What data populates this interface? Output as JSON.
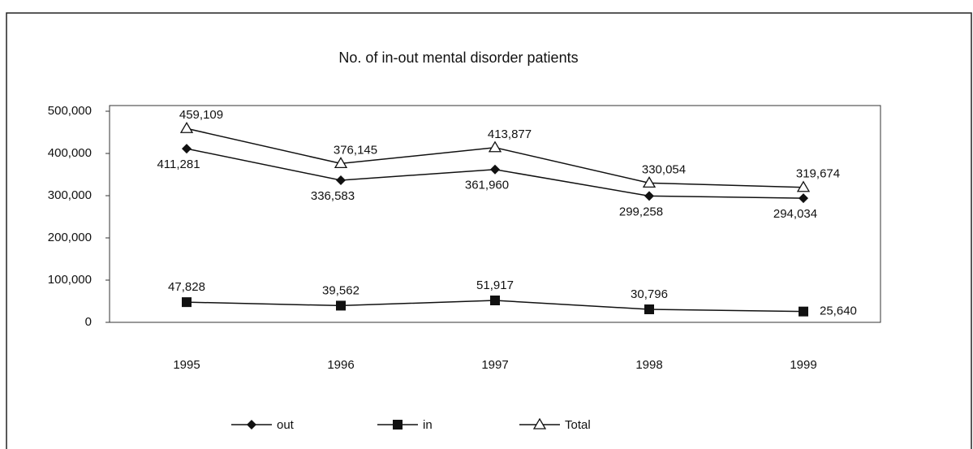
{
  "chart_data": {
    "type": "line",
    "title": "No. of in-out mental disorder patients",
    "categories": [
      "1995",
      "1996",
      "1997",
      "1998",
      "1999"
    ],
    "series": [
      {
        "name": "out",
        "color": "#111111",
        "marker": "diamond",
        "values": [
          411281,
          336583,
          361960,
          299258,
          294034
        ],
        "value_labels": [
          "411,281",
          "336,583",
          "361,960",
          "299,258",
          "294,034"
        ]
      },
      {
        "name": "in",
        "color": "#111111",
        "marker": "square",
        "values": [
          47828,
          39562,
          51917,
          30796,
          25640
        ],
        "value_labels": [
          "47,828",
          "39,562",
          "51,917",
          "30,796",
          "25,640"
        ]
      },
      {
        "name": "Total",
        "color": "#111111",
        "marker": "triangle",
        "values": [
          459109,
          376145,
          413877,
          330054,
          319674
        ],
        "value_labels": [
          "459,109",
          "376,145",
          "413,877",
          "330,054",
          "319,674"
        ]
      }
    ],
    "ylim": [
      0,
      500000
    ],
    "yticks": [
      0,
      {
        "value": 100000,
        "label": "100,000"
      },
      {
        "value": 200000,
        "label": "200,000"
      },
      {
        "value": 300000,
        "label": "300,000"
      },
      {
        "value": 400000,
        "label": "400,000"
      },
      {
        "value": 500000,
        "label": "500,000"
      }
    ],
    "grid": false,
    "legend": "bottom"
  }
}
